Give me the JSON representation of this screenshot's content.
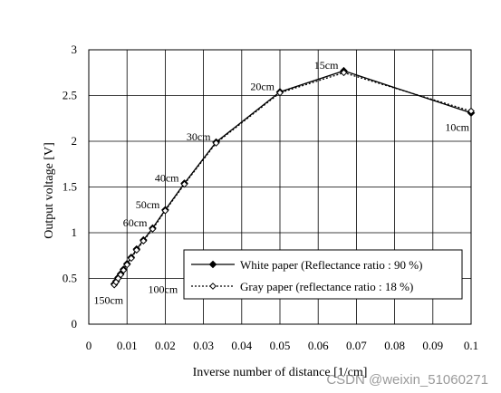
{
  "chart_data": {
    "type": "line",
    "xlabel": "Inverse number of distance [1/cm]",
    "ylabel": "Output voltage [V]",
    "xlim": [
      0,
      0.1
    ],
    "ylim": [
      0,
      3
    ],
    "x_ticks": [
      "0",
      "0.01",
      "0.02",
      "0.03",
      "0.04",
      "0.05",
      "0.06",
      "0.07",
      "0.08",
      "0.09",
      "0.1"
    ],
    "y_ticks": [
      "0",
      "0.5",
      "1",
      "1.5",
      "2",
      "2.5",
      "3"
    ],
    "grid": true,
    "legend_position": "lower-right",
    "series": [
      {
        "name": "White paper (Reflectance ratio : 90 %)",
        "line_style": "solid",
        "marker": "filled-diamond",
        "color": "#000000",
        "points": [
          [
            0.00667,
            0.44
          ],
          [
            0.00714,
            0.47
          ],
          [
            0.00769,
            0.51
          ],
          [
            0.00833,
            0.55
          ],
          [
            0.00909,
            0.6
          ],
          [
            0.01,
            0.66
          ],
          [
            0.0111,
            0.73
          ],
          [
            0.0125,
            0.82
          ],
          [
            0.0143,
            0.92
          ],
          [
            0.0167,
            1.05
          ],
          [
            0.02,
            1.25
          ],
          [
            0.025,
            1.54
          ],
          [
            0.0333,
            1.99
          ],
          [
            0.05,
            2.54
          ],
          [
            0.0667,
            2.77
          ],
          [
            0.1,
            2.31
          ]
        ]
      },
      {
        "name": "Gray paper (reflectance ratio : 18 %)",
        "line_style": "dotted",
        "marker": "open-diamond",
        "color": "#000000",
        "points": [
          [
            0.00667,
            0.43
          ],
          [
            0.00714,
            0.46
          ],
          [
            0.00769,
            0.5
          ],
          [
            0.00833,
            0.54
          ],
          [
            0.00909,
            0.59
          ],
          [
            0.01,
            0.65
          ],
          [
            0.0111,
            0.72
          ],
          [
            0.0125,
            0.81
          ],
          [
            0.0143,
            0.91
          ],
          [
            0.0167,
            1.04
          ],
          [
            0.02,
            1.24
          ],
          [
            0.025,
            1.53
          ],
          [
            0.0333,
            1.98
          ],
          [
            0.05,
            2.53
          ],
          [
            0.0667,
            2.75
          ],
          [
            0.1,
            2.33
          ]
        ]
      }
    ],
    "annotations": [
      {
        "text": "150cm",
        "x": 0.00667,
        "y": 0.44,
        "anchor": "below"
      },
      {
        "text": "100cm",
        "x": 0.01,
        "y": 0.66,
        "anchor": "right"
      },
      {
        "text": "60cm",
        "x": 0.0167,
        "y": 1.05,
        "anchor": "left"
      },
      {
        "text": "50cm",
        "x": 0.02,
        "y": 1.25,
        "anchor": "left"
      },
      {
        "text": "40cm",
        "x": 0.025,
        "y": 1.54,
        "anchor": "left"
      },
      {
        "text": "30cm",
        "x": 0.0333,
        "y": 1.99,
        "anchor": "left"
      },
      {
        "text": "20cm",
        "x": 0.05,
        "y": 2.54,
        "anchor": "left"
      },
      {
        "text": "15cm",
        "x": 0.0667,
        "y": 2.77,
        "anchor": "left"
      },
      {
        "text": "10cm",
        "x": 0.1,
        "y": 2.31,
        "anchor": "left-below"
      }
    ]
  },
  "watermark": "CSDN @weixin_51060271"
}
